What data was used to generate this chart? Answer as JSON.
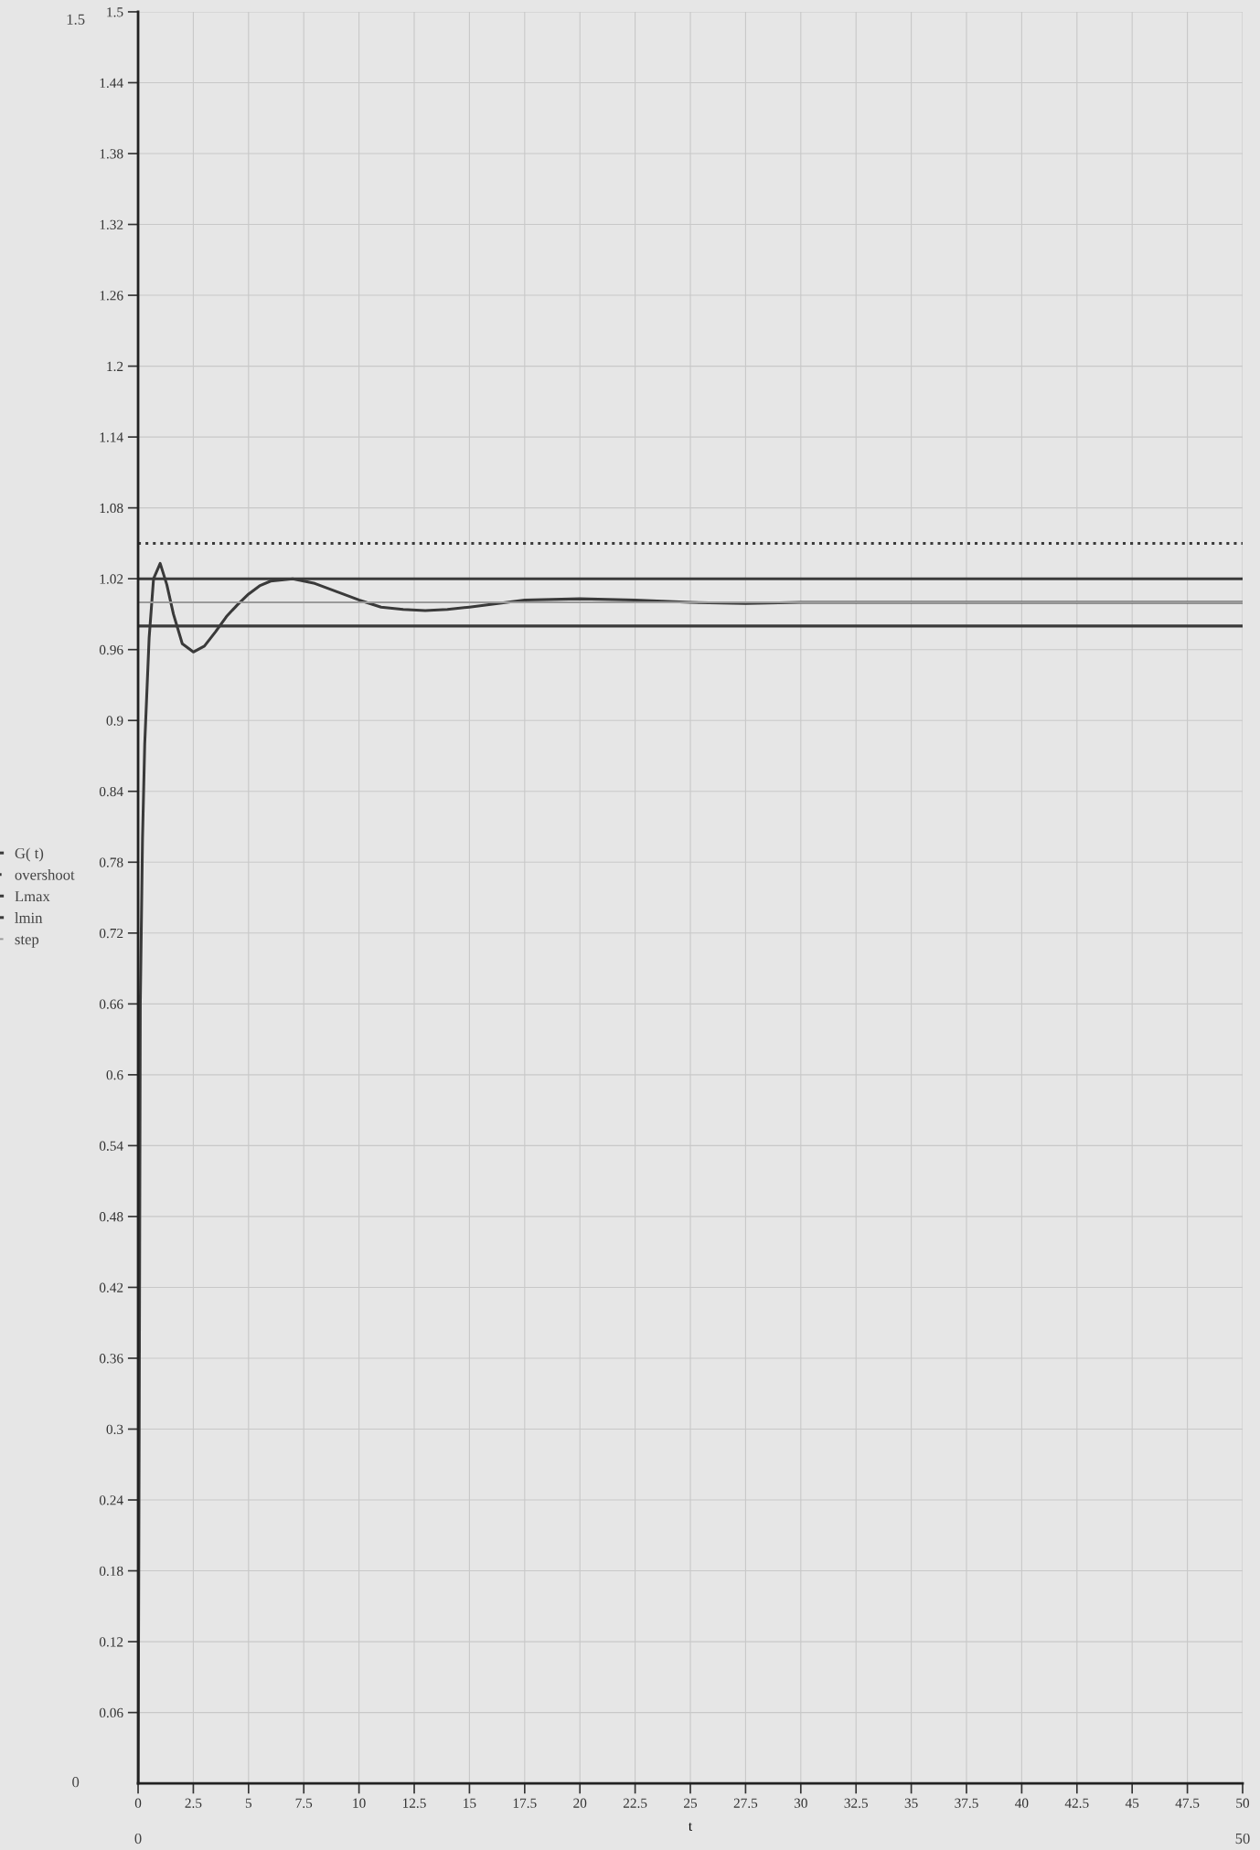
{
  "chart_data": {
    "type": "line",
    "xlabel": "t",
    "x": [
      0,
      0.05,
      0.1,
      0.2,
      0.3,
      0.5,
      0.7,
      1.0,
      1.3,
      1.6,
      2.0,
      2.5,
      3.0,
      3.5,
      4.0,
      4.5,
      5.0,
      5.5,
      6.0,
      7.0,
      8.0,
      9.0,
      10,
      11,
      12,
      13,
      14,
      15,
      17.5,
      20,
      22.5,
      25,
      27.5,
      30,
      35,
      40,
      50
    ],
    "series": [
      {
        "name": "G( t)",
        "color": "#3a3a3a",
        "line_style": "solid",
        "values": [
          0,
          0.3,
          0.66,
          0.8,
          0.88,
          0.97,
          1.02,
          1.033,
          1.015,
          0.99,
          0.965,
          0.958,
          0.963,
          0.975,
          0.988,
          0.998,
          1.007,
          1.014,
          1.018,
          1.02,
          1.016,
          1.009,
          1.002,
          0.996,
          0.994,
          0.993,
          0.994,
          0.996,
          1.002,
          1.003,
          1.002,
          1.0,
          0.999,
          1.0,
          1.0,
          1.0,
          1.0
        ]
      }
    ],
    "ref_lines": [
      {
        "axis": "y",
        "value": 1.05,
        "label": "overshoot",
        "color": "#3a3a3a",
        "line_style": "dotted"
      },
      {
        "axis": "y",
        "value": 1.02,
        "label": "Lmax",
        "color": "#3a3a3a",
        "line_style": "solid"
      },
      {
        "axis": "y",
        "value": 0.98,
        "label": "lmin",
        "color": "#3a3a3a",
        "line_style": "solid"
      },
      {
        "axis": "y",
        "value": 1.0,
        "label": "step",
        "color": "#9a9a9a",
        "line_style": "solid"
      }
    ],
    "xlim": [
      0,
      50
    ],
    "ylim": [
      0,
      1.5
    ],
    "xticks": [
      0,
      2.5,
      5,
      7.5,
      10,
      12.5,
      15,
      17.5,
      20,
      22.5,
      25,
      27.5,
      30,
      32.5,
      35,
      37.5,
      40,
      42.5,
      45,
      47.5,
      50
    ],
    "yticks": [
      0.06,
      0.12,
      0.18,
      0.24,
      0.3,
      0.36,
      0.42,
      0.48,
      0.54,
      0.6,
      0.66,
      0.72,
      0.78,
      0.84,
      0.9,
      0.96,
      1.02,
      1.08,
      1.14,
      1.2,
      1.26,
      1.32,
      1.38,
      1.44,
      1.5
    ],
    "annotations": [
      "1.5",
      "0",
      "0",
      "50"
    ],
    "grid": true,
    "legend": "left",
    "marker": "none"
  }
}
